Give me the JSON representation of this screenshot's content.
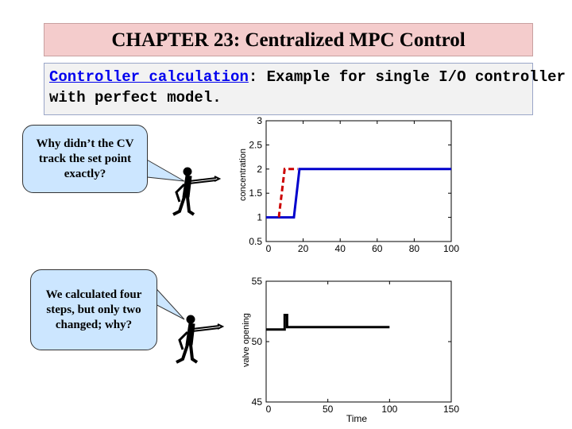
{
  "slide": {
    "title": "CHAPTER 23: Centralized MPC Control",
    "subtitle_link": "Controller calculation",
    "subtitle_rest": ": Example for single I/O controller",
    "subtitle_line2": "with perfect model."
  },
  "bubbles": {
    "top": "Why didn’t the CV track the set point exactly?",
    "bottom": "We calculated four steps, but only two changed; why?"
  },
  "colors": {
    "title_bg": "#f4cccc",
    "bubble_bg": "#cce6ff",
    "cv_line": "#0000cc",
    "setpoint_line": "#cc0000",
    "mv_line": "#000000"
  },
  "chart_data": [
    {
      "type": "line",
      "ylabel": "concentration",
      "xlabel": "",
      "xlim": [
        0,
        100
      ],
      "ylim": [
        0.5,
        3
      ],
      "xticks": [
        "0",
        "20",
        "40",
        "60",
        "80",
        "100"
      ],
      "yticks": [
        "0.5",
        "1",
        "1.5",
        "2",
        "2.5",
        "3"
      ],
      "series": [
        {
          "role": "controlled variable",
          "color": "#0000cc",
          "style": "solid",
          "x": [
            0,
            15,
            18,
            100
          ],
          "y": [
            1,
            1,
            2,
            2
          ]
        },
        {
          "role": "set point",
          "color": "#cc0000",
          "style": "dashed",
          "x": [
            7,
            7,
            10,
            17
          ],
          "y": [
            1,
            1.05,
            2,
            2
          ]
        }
      ]
    },
    {
      "type": "line",
      "ylabel": "valve opening",
      "xlabel": "Time",
      "xlim": [
        0,
        150
      ],
      "ylim": [
        45,
        55
      ],
      "xticks": [
        "0",
        "50",
        "100",
        "150"
      ],
      "yticks": [
        "45",
        "50",
        "55"
      ],
      "series": [
        {
          "role": "manipulated variable",
          "color": "#000000",
          "style": "solid",
          "x": [
            0,
            15,
            15,
            17,
            17,
            100
          ],
          "y": [
            51,
            51,
            52.2,
            52.2,
            51.2,
            51.2
          ]
        }
      ]
    }
  ]
}
